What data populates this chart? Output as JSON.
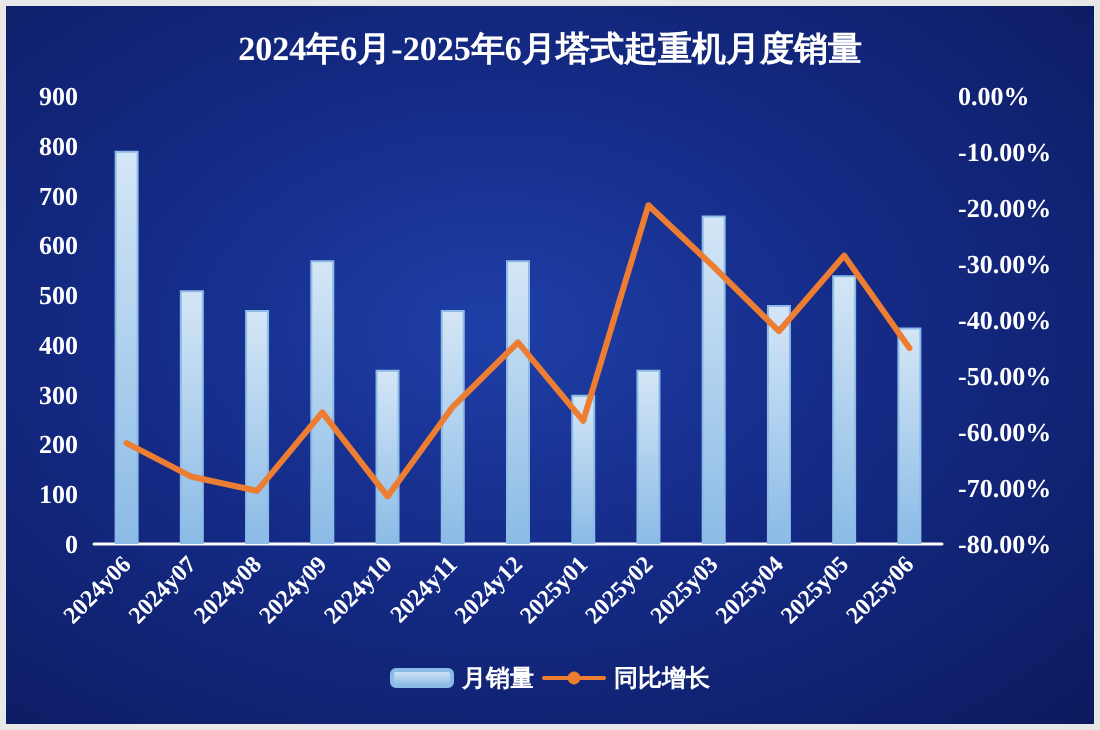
{
  "chart_data": {
    "type": "bar",
    "title": "2024年6月-2025年6月塔式起重机月度销量",
    "categories": [
      "2024y06",
      "2024y07",
      "2024y08",
      "2024y09",
      "2024y10",
      "2024y11",
      "2024y12",
      "2025y01",
      "2025y02",
      "2025y03",
      "2025y04",
      "2025y05",
      "2025y06"
    ],
    "series": [
      {
        "name": "月销量",
        "color": "#8bbbe6",
        "values": [
          790,
          510,
          470,
          570,
          350,
          470,
          570,
          300,
          350,
          660,
          480,
          540,
          435
        ]
      },
      {
        "name": "同比增长",
        "type": "line",
        "axis": "y2",
        "color": "#ed7d31",
        "values": [
          -62,
          -68,
          -70.5,
          -56.5,
          -71.5,
          -55.5,
          -44,
          -58,
          -19.5,
          -30.5,
          -42,
          -28.5,
          -45
        ]
      }
    ],
    "ylim": [
      0,
      900
    ],
    "yticks": [
      0,
      100,
      200,
      300,
      400,
      500,
      600,
      700,
      800,
      900
    ],
    "y2lim": [
      -80,
      0
    ],
    "y2ticks": [
      {
        "value": -80,
        "label": "-80.00%"
      },
      {
        "value": -70,
        "label": "-70.00%"
      },
      {
        "value": -60,
        "label": "-60.00%"
      },
      {
        "value": -50,
        "label": "-50.00%"
      },
      {
        "value": -40,
        "label": "-40.00%"
      },
      {
        "value": -30,
        "label": "-30.00%"
      },
      {
        "value": -20,
        "label": "-20.00%"
      },
      {
        "value": -10,
        "label": "-10.00%"
      },
      {
        "value": 0,
        "label": "0.00%"
      }
    ],
    "grid": false,
    "legend": "bottom",
    "marker": "none",
    "line_style": "solid"
  }
}
